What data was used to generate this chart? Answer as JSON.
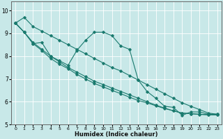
{
  "xlabel": "Humidex (Indice chaleur)",
  "bg_color": "#c8e8e8",
  "grid_color": "#ffffff",
  "line_color": "#1a7a6e",
  "xlim": [
    -0.5,
    23.5
  ],
  "ylim": [
    5,
    10.4
  ],
  "yticks": [
    5,
    6,
    7,
    8,
    9,
    10
  ],
  "xticks": [
    0,
    1,
    2,
    3,
    4,
    5,
    6,
    7,
    8,
    9,
    10,
    11,
    12,
    13,
    14,
    15,
    16,
    17,
    18,
    19,
    20,
    21,
    22,
    23
  ],
  "series": [
    {
      "x": [
        0,
        1,
        2,
        3,
        4,
        5,
        6,
        7,
        8,
        9,
        10,
        11,
        12,
        13,
        14,
        15,
        16,
        17,
        18,
        19,
        20,
        21,
        22,
        23
      ],
      "y": [
        9.45,
        9.7,
        9.3,
        9.1,
        8.9,
        8.7,
        8.5,
        8.3,
        8.1,
        7.9,
        7.7,
        7.5,
        7.35,
        7.15,
        6.95,
        6.75,
        6.55,
        6.35,
        6.15,
        5.95,
        5.8,
        5.65,
        5.5,
        5.45
      ]
    },
    {
      "x": [
        0,
        1,
        2,
        3,
        4,
        5,
        6,
        7,
        8,
        9,
        10,
        11,
        12,
        13,
        14,
        15,
        16,
        17,
        18,
        19,
        20,
        21,
        22,
        23
      ],
      "y": [
        9.45,
        9.05,
        8.55,
        8.6,
        8.0,
        7.8,
        7.6,
        8.25,
        8.7,
        9.05,
        9.05,
        8.9,
        8.45,
        8.3,
        6.95,
        6.45,
        6.15,
        5.8,
        5.75,
        5.4,
        5.55,
        5.55,
        5.45,
        5.45
      ]
    },
    {
      "x": [
        0,
        1,
        2,
        3,
        4,
        5,
        6,
        7,
        8,
        9,
        10,
        11,
        12,
        13,
        14,
        15,
        16,
        17,
        18,
        19,
        20,
        21,
        22,
        23
      ],
      "y": [
        9.45,
        9.05,
        8.6,
        8.3,
        8.0,
        7.75,
        7.5,
        7.3,
        7.1,
        6.9,
        6.75,
        6.6,
        6.45,
        6.3,
        6.15,
        6.0,
        5.85,
        5.72,
        5.6,
        5.5,
        5.47,
        5.45,
        5.43,
        5.42
      ]
    },
    {
      "x": [
        0,
        1,
        2,
        3,
        4,
        5,
        6,
        7,
        8,
        9,
        10,
        11,
        12,
        13,
        14,
        15,
        16,
        17,
        18,
        19,
        20,
        21,
        22,
        23
      ],
      "y": [
        9.45,
        9.05,
        8.55,
        8.25,
        7.9,
        7.65,
        7.45,
        7.2,
        7.0,
        6.8,
        6.65,
        6.5,
        6.35,
        6.2,
        6.05,
        5.95,
        5.82,
        5.7,
        5.6,
        5.5,
        5.47,
        5.44,
        5.42,
        5.42
      ]
    }
  ]
}
